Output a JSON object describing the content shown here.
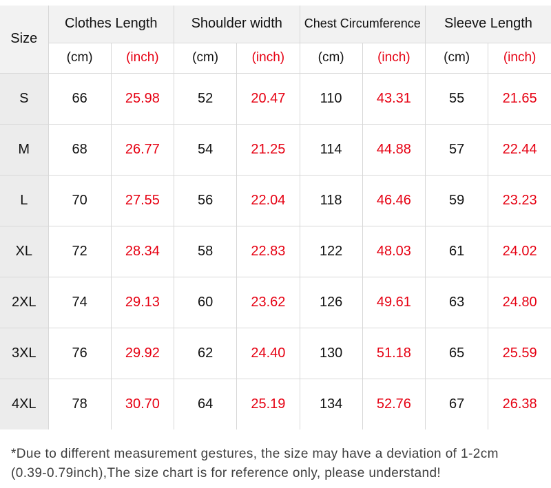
{
  "colors": {
    "inch_red": "#e60012",
    "text": "#111111",
    "size_column_bg": "#ececec",
    "header_bg": "#f2f2f2",
    "grid_line": "#d8d8d8",
    "note_text": "#3d3d3d"
  },
  "note": {
    "line1": "*Due to different measurement gestures, the size may have a deviation of 1-2cm",
    "line2": "(0.39-0.79inch),The size chart is for reference only, please understand!"
  },
  "chart_data": {
    "type": "table",
    "corner_label": "Size",
    "column_groups": [
      "Clothes Length",
      "Shoulder width",
      "Chest Circumference",
      "Sleeve Length"
    ],
    "unit_labels": {
      "cm": "(cm)",
      "inch": "(inch)"
    },
    "columns": [
      "Size",
      "Clothes Length (cm)",
      "Clothes Length (inch)",
      "Shoulder width (cm)",
      "Shoulder width (inch)",
      "Chest Circumference (cm)",
      "Chest Circumference (inch)",
      "Sleeve Length (cm)",
      "Sleeve Length (inch)"
    ],
    "rows": [
      [
        "S",
        "66",
        "25.98",
        "52",
        "20.47",
        "110",
        "43.31",
        "55",
        "21.65"
      ],
      [
        "M",
        "68",
        "26.77",
        "54",
        "21.25",
        "114",
        "44.88",
        "57",
        "22.44"
      ],
      [
        "L",
        "70",
        "27.55",
        "56",
        "22.04",
        "118",
        "46.46",
        "59",
        "23.23"
      ],
      [
        "XL",
        "72",
        "28.34",
        "58",
        "22.83",
        "122",
        "48.03",
        "61",
        "24.02"
      ],
      [
        "2XL",
        "74",
        "29.13",
        "60",
        "23.62",
        "126",
        "49.61",
        "63",
        "24.80"
      ],
      [
        "3XL",
        "76",
        "29.92",
        "62",
        "24.40",
        "130",
        "51.18",
        "65",
        "25.59"
      ],
      [
        "4XL",
        "78",
        "30.70",
        "64",
        "25.19",
        "134",
        "52.76",
        "67",
        "26.38"
      ]
    ]
  }
}
